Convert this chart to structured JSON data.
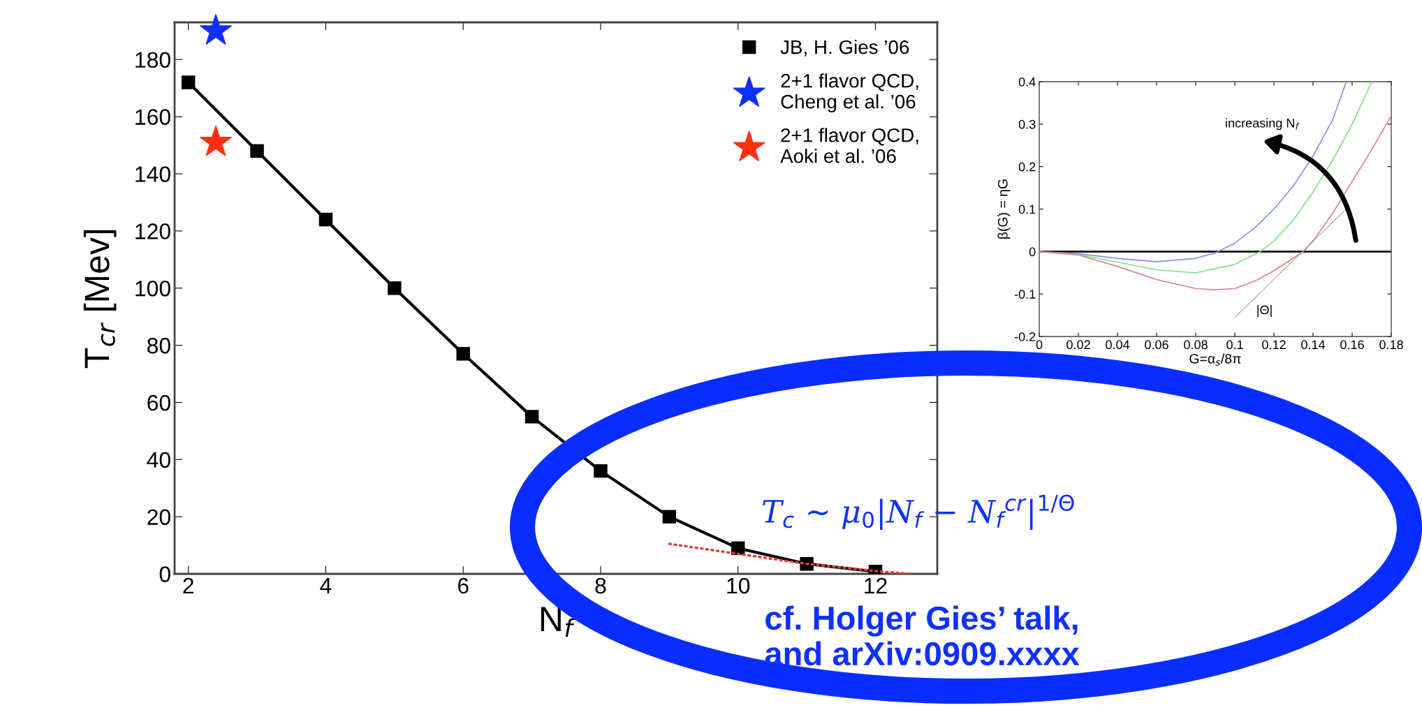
{
  "chart_data": [
    {
      "type": "line",
      "xlabel": "N$_{f}$",
      "ylabel": "T$_{cr}$ [Mev]",
      "xlim": [
        1.8,
        12.9
      ],
      "ylim": [
        0,
        193
      ],
      "xticks": [
        2,
        4,
        6,
        8,
        10,
        12
      ],
      "yticks": [
        0,
        20,
        40,
        60,
        80,
        100,
        120,
        140,
        160,
        180
      ],
      "grid": false,
      "legend": "top right",
      "series": [
        {
          "name": "JB, H. Gies ’06",
          "type": "line",
          "marker": "square",
          "line_style": "solid",
          "color": "#000000",
          "x": [
            2,
            3,
            4,
            5,
            6,
            7,
            8,
            9,
            10,
            11,
            12
          ],
          "values": [
            172,
            148,
            124,
            100,
            77,
            55,
            36,
            20,
            9,
            3.5,
            0.8
          ]
        },
        {
          "name": "2+1 flavor QCD,\nCheng et al. ’06",
          "type": "scatter",
          "marker": "star",
          "color": "#1030ff",
          "x": [
            2.4
          ],
          "values": [
            190
          ]
        },
        {
          "name": "2+1 flavor QCD,\nAoki et al. ’06",
          "type": "scatter",
          "marker": "star",
          "color": "#ff3010",
          "x": [
            2.4
          ],
          "values": [
            151
          ]
        },
        {
          "type": "line",
          "marker": "none",
          "line_style": "dotted",
          "color": "#e83a3a",
          "x": [
            9,
            10,
            11,
            12,
            12.5
          ],
          "values": [
            10.5,
            7,
            3.5,
            1,
            0
          ]
        }
      ],
      "annotations": [
        "T$_{c}$ ∼ μ$_{0}$|N$_{f}$ − N$_{f}$$^{cr}$|$^{1/Θ}$",
        "cf. Holger Gies’ talk,\nand arXiv:0909.xxxx"
      ]
    },
    {
      "type": "line",
      "xlabel": "G=α$_{s}$/8π",
      "ylabel": "β(G) = ηG",
      "xlim": [
        0,
        0.18
      ],
      "ylim": [
        -0.2,
        0.4
      ],
      "xticks": [
        0,
        0.02,
        0.04,
        0.06,
        0.08,
        0.1,
        0.12,
        0.14,
        0.16,
        0.18
      ],
      "yticks": [
        -0.2,
        -0.1,
        0,
        0.1,
        0.2,
        0.3,
        0.4
      ],
      "grid": false,
      "legend": false,
      "series": [
        {
          "color": "#8090f0",
          "line_style": "solid",
          "x": [
            0,
            0.02,
            0.04,
            0.06,
            0.08,
            0.09,
            0.1,
            0.11,
            0.12,
            0.13,
            0.14,
            0.15,
            0.157
          ],
          "values": [
            0,
            -0.005,
            -0.016,
            -0.024,
            -0.016,
            -0.003,
            0.02,
            0.055,
            0.1,
            0.155,
            0.225,
            0.31,
            0.4
          ]
        },
        {
          "color": "#80e080",
          "line_style": "solid",
          "x": [
            0,
            0.02,
            0.04,
            0.06,
            0.08,
            0.1,
            0.113,
            0.12,
            0.13,
            0.14,
            0.15,
            0.16,
            0.17
          ],
          "values": [
            0,
            -0.007,
            -0.025,
            -0.043,
            -0.05,
            -0.03,
            0,
            0.025,
            0.075,
            0.14,
            0.215,
            0.3,
            0.4
          ]
        },
        {
          "color": "#e08080",
          "line_style": "solid",
          "x": [
            0,
            0.02,
            0.04,
            0.06,
            0.08,
            0.09,
            0.1,
            0.11,
            0.12,
            0.13,
            0.135,
            0.14,
            0.15,
            0.16,
            0.17,
            0.18
          ],
          "values": [
            0,
            -0.008,
            -0.035,
            -0.066,
            -0.087,
            -0.09,
            -0.087,
            -0.07,
            -0.045,
            -0.015,
            0,
            0.025,
            0.09,
            0.165,
            0.24,
            0.32
          ]
        },
        {
          "color": "#909090",
          "line_style": "dotted",
          "x": [
            0.1,
            0.158
          ],
          "values": [
            -0.155,
            0.105
          ]
        }
      ],
      "ref_lines": [
        {
          "axis": "y",
          "value": 0,
          "color": "#000000",
          "line_style": "solid"
        }
      ],
      "annotations": [
        "increasing N$_{f}$",
        "|Θ|"
      ]
    }
  ]
}
